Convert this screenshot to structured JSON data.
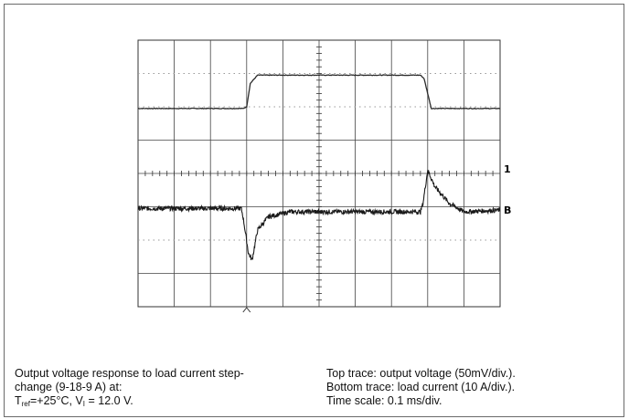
{
  "chart_data": {
    "type": "line",
    "title": "",
    "xlabel": "",
    "ylabel": "",
    "grid": true,
    "divisions": {
      "x": 10,
      "y": 8
    },
    "xlim": [
      0,
      10
    ],
    "ylim": [
      -4,
      4
    ],
    "x_unit": "div (0.1 ms/div)",
    "y_unit": "div",
    "series": [
      {
        "name": "Top trace: output voltage (50mV/div.)",
        "marker": "1",
        "baseline_div": 1.0,
        "x": [
          0,
          2.9,
          3.0,
          3.1,
          3.3,
          7.8,
          7.9,
          8.1,
          10.0
        ],
        "y": [
          1.95,
          1.95,
          2.0,
          2.7,
          2.95,
          2.95,
          2.85,
          1.95,
          1.95
        ],
        "color": "#2b2b2b"
      },
      {
        "name": "Bottom trace: load current (10 A/div.)",
        "marker": "B",
        "baseline_div": -1.1,
        "x": [
          0,
          2.85,
          2.9,
          3.05,
          3.15,
          3.3,
          3.6,
          4.2,
          7.8,
          7.87,
          8.0,
          8.2,
          8.6,
          9.0,
          10.0
        ],
        "y": [
          -1.05,
          -1.05,
          -1.3,
          -2.4,
          -2.6,
          -1.7,
          -1.3,
          -1.15,
          -1.15,
          -0.9,
          0.1,
          -0.4,
          -0.9,
          -1.15,
          -1.1
        ],
        "color": "#1a1a1a"
      }
    ]
  },
  "caption": {
    "left_line1": "Output voltage response to load current step-",
    "left_line2": "change (9-18-9 A) at:",
    "left_line3_tref_T": "T",
    "left_line3_tref_sub": "ref",
    "left_line3_tref_rest": "=+25°C, V",
    "left_line3_vi_sub": "I",
    "left_line3_vi_rest": " = 12.0 V.",
    "right_line1": "Top trace: output voltage (50mV/div.).",
    "right_line2": "Bottom trace: load current (10 A/div.).",
    "right_line3": "Time scale: 0.1 ms/div."
  },
  "markers": {
    "top": "1",
    "bottom": "B"
  }
}
